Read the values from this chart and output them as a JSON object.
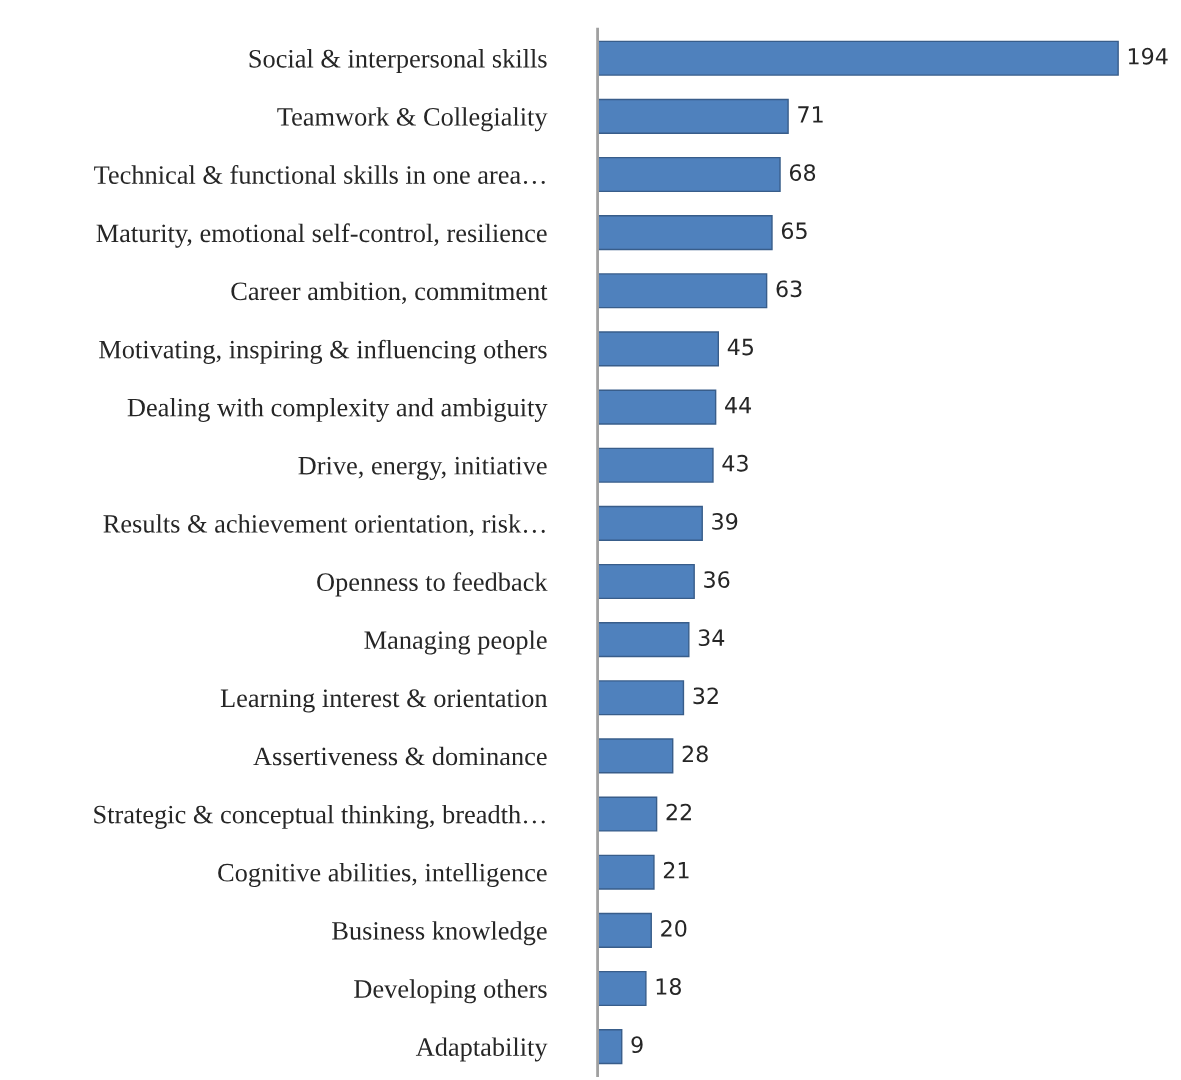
{
  "chart_data": {
    "type": "bar",
    "orientation": "horizontal",
    "data_labels": true,
    "grid": false,
    "legend": false,
    "color": "#4f81bd",
    "categories": [
      "Social & interpersonal skills",
      "Teamwork & Collegiality",
      "Technical & functional skills in one area…",
      "Maturity, emotional self-control, resilience",
      "Career ambition, commitment",
      "Motivating, inspiring & influencing others",
      "Dealing with complexity and ambiguity",
      "Drive, energy, initiative",
      "Results & achievement orientation, risk…",
      "Openness to feedback",
      "Managing people",
      "Learning interest & orientation",
      "Assertiveness & dominance",
      "Strategic & conceptual thinking, breadth…",
      "Cognitive abilities, intelligence",
      "Business knowledge",
      "Developing others",
      "Adaptability"
    ],
    "values": [
      194,
      71,
      68,
      65,
      63,
      45,
      44,
      43,
      39,
      36,
      34,
      32,
      28,
      22,
      21,
      20,
      18,
      9
    ]
  }
}
